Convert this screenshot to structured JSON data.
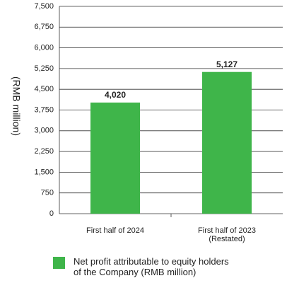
{
  "chart_data": {
    "type": "bar",
    "y_label": "(RMB million)",
    "categories": [
      "First half of 2024",
      "First half of 2023\n(Restated)"
    ],
    "series": [
      {
        "name": "Net profit attributable to equity holders\nof the Company  (RMB million)",
        "color": "#3fb54a",
        "values": [
          4020,
          5127
        ],
        "value_labels": [
          "4,020",
          "5,127"
        ]
      }
    ],
    "ylim": [
      0,
      7500
    ],
    "yticks": [
      0,
      750,
      {
        "value": 1500,
        "label": "1,500"
      },
      {
        "value": 2250,
        "label": "2,250"
      },
      {
        "value": 3000,
        "label": "3,000"
      },
      {
        "value": 3750,
        "label": "3,750"
      },
      {
        "value": 4500,
        "label": "4,500"
      },
      {
        "value": 5250,
        "label": "5,250"
      },
      {
        "value": 6000,
        "label": "6,000"
      },
      {
        "value": 6750,
        "label": "6,750"
      },
      {
        "value": 7500,
        "label": "7,500"
      }
    ],
    "grid": true
  }
}
